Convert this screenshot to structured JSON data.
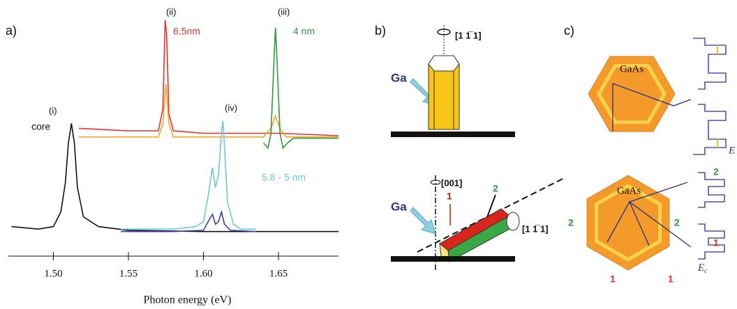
{
  "chart_data": {
    "type": "line",
    "panel_label": "a)",
    "xlabel": "Photon energy (eV)",
    "xlim": [
      1.47,
      1.69
    ],
    "xticks": [
      {
        "value": 1.5,
        "label": "1.50"
      },
      1.55,
      {
        "value": 1.6,
        "label": "1.60"
      },
      1.65
    ],
    "ylim": [
      0,
      100
    ],
    "series": [
      {
        "name": "core",
        "color": "#111111",
        "x": [
          1.472,
          1.49,
          1.5,
          1.505,
          1.508,
          1.51,
          1.512,
          1.514,
          1.516,
          1.52,
          1.53,
          1.55,
          1.6,
          1.69
        ],
        "values": [
          12,
          11,
          12,
          18,
          30,
          46,
          54,
          46,
          28,
          16,
          12,
          10.5,
          10,
          10
        ]
      },
      {
        "name": "6.5nm",
        "color": "#e8302a",
        "x": [
          1.517,
          1.55,
          1.57,
          1.573,
          1.5745,
          1.5755,
          1.577,
          1.58,
          1.6,
          1.63,
          1.65,
          1.69
        ],
        "values": [
          52,
          51,
          51,
          60,
          96,
          90,
          58,
          51,
          50,
          50,
          50,
          49
        ]
      },
      {
        "color": "#f5a623",
        "x": [
          1.517,
          1.57,
          1.573,
          1.575,
          1.577,
          1.58,
          1.64,
          1.645,
          1.648,
          1.651,
          1.655,
          1.69
        ],
        "values": [
          48.5,
          48.5,
          54,
          70,
          54,
          48.5,
          48.5,
          52,
          57,
          52,
          48.5,
          48.5
        ]
      },
      {
        "name": "4 nm",
        "color": "#2e9a3a",
        "x": [
          1.64,
          1.643,
          1.645,
          1.647,
          1.648,
          1.649,
          1.651,
          1.653,
          1.656,
          1.66,
          1.69
        ],
        "values": [
          46,
          44,
          50,
          80,
          93,
          80,
          50,
          44,
          46,
          48,
          48
        ]
      },
      {
        "name": "5.8 - 5 nm",
        "color": "#6cc8e0",
        "x": [
          1.545,
          1.58,
          1.595,
          1.6,
          1.603,
          1.606,
          1.608,
          1.61,
          1.612,
          1.613,
          1.614,
          1.616,
          1.62,
          1.625,
          1.635
        ],
        "values": [
          11,
          11,
          12,
          14,
          24,
          36,
          28,
          33,
          50,
          55,
          45,
          22,
          13,
          11,
          11
        ]
      },
      {
        "color": "#3a3fa8",
        "x": [
          1.545,
          1.58,
          1.6,
          1.604,
          1.606,
          1.608,
          1.61,
          1.612,
          1.614,
          1.618,
          1.635
        ],
        "values": [
          10,
          10,
          10.5,
          15,
          17,
          13,
          14,
          18,
          13,
          10.5,
          10
        ]
      }
    ],
    "annotations": [
      "(i)",
      "(ii)",
      "(iii)",
      "(iv)"
    ]
  },
  "panel_b": {
    "label": "b)",
    "ga_top": "Ga",
    "axis_top": "[1 1̅ 1]",
    "axis_001": "[001]",
    "ga_bottom": "Ga",
    "facet_1": "1",
    "facet_2": "2",
    "axis_bottom": "[1 1̅ 1]"
  },
  "panel_c": {
    "label": "c)",
    "top_core": "GaAs",
    "top_energy": "E",
    "bottom_core": "GaAs",
    "bottom_labels": [
      "2",
      "2",
      "2",
      "1",
      "1",
      "1"
    ],
    "bottom_energy": "E",
    "bottom_energy_sub": "c"
  }
}
